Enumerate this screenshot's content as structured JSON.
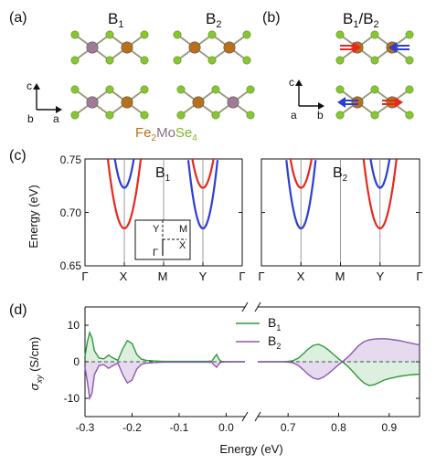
{
  "panels": {
    "a": "(a)",
    "b": "(b)",
    "c": "(c)",
    "d": "(d)"
  },
  "structures": {
    "b1_base": "B",
    "b1_sub": "1",
    "b2_base": "B",
    "b2_sub": "2",
    "b12_text": "B",
    "b12_sub1": "1",
    "b12_slash": "/B",
    "b12_sub2": "2",
    "compound": {
      "fe": "Fe",
      "fe_sub": "2",
      "mo": "Mo",
      "se": "Se",
      "se_sub": "4"
    },
    "axes_a": {
      "up": "c",
      "right": "a",
      "depth": "b"
    },
    "axes_b": {
      "up": "c",
      "right": "b",
      "depth": "a"
    }
  },
  "colors": {
    "se": "#86c633",
    "fe": "#b8711a",
    "mo": "#a07a98",
    "red": "#e8281e",
    "blue": "#2d3ed3",
    "green": "#2e9a3a",
    "purple": "#8e58b0"
  },
  "band": {
    "ylabel": "Energy (eV)",
    "yticks": [
      "0.75",
      "0.70",
      "0.65"
    ],
    "kpath": [
      "Γ",
      "X",
      "M",
      "Y",
      "Γ"
    ],
    "left_label_base": "B",
    "left_label_sub": "1",
    "right_label_base": "B",
    "right_label_sub": "2",
    "inset": {
      "Y": "Y",
      "M": "M",
      "X": "X",
      "G": "Γ"
    }
  },
  "chart_data": {
    "type": "line",
    "ylabel": "σxy (S/cm)",
    "xlabel": "Energy (eV)",
    "ylim": [
      -15,
      15
    ],
    "yticks": [
      10,
      0,
      -10
    ],
    "xticks_left": [
      -0.3,
      -0.2,
      -0.1,
      0.0
    ],
    "xticks_right": [
      0.7,
      0.8,
      0.9
    ],
    "xlim_left": [
      -0.3,
      0.04
    ],
    "xlim_right": [
      0.64,
      0.96
    ],
    "legend_placement": "top-right",
    "series": [
      {
        "name": "B1",
        "name_base": "B",
        "name_sub": "1",
        "x_left": [
          -0.3,
          -0.295,
          -0.29,
          -0.285,
          -0.28,
          -0.27,
          -0.26,
          -0.25,
          -0.24,
          -0.23,
          -0.22,
          -0.21,
          -0.2,
          -0.19,
          -0.18,
          -0.17,
          -0.16,
          -0.15,
          -0.14,
          -0.13,
          -0.12,
          -0.11,
          -0.1,
          -0.09,
          -0.08,
          -0.07,
          -0.06,
          -0.05,
          -0.04,
          -0.03,
          -0.025,
          -0.02,
          -0.015,
          -0.01,
          0.0,
          0.04
        ],
        "y_left": [
          1.5,
          5.5,
          8.0,
          6.5,
          3.0,
          1.0,
          0.8,
          1.8,
          1.0,
          0.4,
          3.5,
          5.8,
          5.0,
          2.0,
          0.7,
          0.4,
          0.3,
          0.2,
          0.15,
          0.1,
          0.1,
          0.1,
          0.1,
          0.1,
          0.1,
          0.1,
          0.1,
          0.1,
          0.1,
          0.2,
          1.2,
          2.0,
          0.6,
          0.1,
          0.0,
          0.0
        ],
        "x_right": [
          0.64,
          0.65,
          0.66,
          0.67,
          0.68,
          0.69,
          0.7,
          0.71,
          0.72,
          0.73,
          0.74,
          0.75,
          0.76,
          0.77,
          0.78,
          0.79,
          0.8,
          0.81,
          0.82,
          0.83,
          0.84,
          0.85,
          0.86,
          0.87,
          0.88,
          0.89,
          0.9,
          0.91,
          0.92,
          0.93,
          0.94,
          0.95,
          0.96
        ],
        "y_right": [
          0.0,
          0.0,
          0.0,
          0.0,
          0.0,
          0.0,
          0.1,
          0.3,
          1.0,
          2.2,
          3.5,
          4.5,
          4.8,
          4.2,
          3.2,
          2.0,
          0.8,
          -0.3,
          -1.5,
          -3.0,
          -4.5,
          -5.8,
          -6.5,
          -6.3,
          -5.7,
          -5.0,
          -4.6,
          -4.3,
          -4.0,
          -3.8,
          -3.6,
          -3.5,
          -3.4
        ]
      },
      {
        "name": "B2",
        "name_base": "B",
        "name_sub": "2",
        "x_left": [
          -0.3,
          -0.295,
          -0.29,
          -0.285,
          -0.28,
          -0.27,
          -0.26,
          -0.25,
          -0.24,
          -0.23,
          -0.22,
          -0.21,
          -0.2,
          -0.19,
          -0.18,
          -0.17,
          -0.16,
          -0.15,
          -0.14,
          -0.13,
          -0.12,
          -0.11,
          -0.1,
          -0.09,
          -0.08,
          -0.07,
          -0.06,
          -0.05,
          -0.04,
          -0.03,
          -0.025,
          -0.02,
          -0.015,
          -0.01,
          0.0,
          0.04
        ],
        "y_left": [
          -1.5,
          -5.5,
          -10.0,
          -8.5,
          -3.5,
          -1.0,
          -0.8,
          -1.8,
          -1.0,
          -0.4,
          -3.5,
          -5.8,
          -5.0,
          -2.0,
          -0.7,
          -0.4,
          -0.3,
          -0.2,
          -0.15,
          -0.1,
          -0.1,
          -0.1,
          -0.1,
          -0.1,
          -0.1,
          -0.1,
          -0.1,
          -0.1,
          -0.1,
          -0.2,
          -1.0,
          -1.5,
          -0.5,
          -0.1,
          0.0,
          0.0
        ],
        "x_right": [
          0.64,
          0.65,
          0.66,
          0.67,
          0.68,
          0.69,
          0.7,
          0.71,
          0.72,
          0.73,
          0.74,
          0.75,
          0.76,
          0.77,
          0.78,
          0.79,
          0.8,
          0.81,
          0.82,
          0.83,
          0.84,
          0.85,
          0.86,
          0.87,
          0.88,
          0.89,
          0.9,
          0.91,
          0.92,
          0.93,
          0.94,
          0.95,
          0.96
        ],
        "y_right": [
          0.0,
          0.0,
          0.0,
          0.0,
          0.0,
          0.0,
          -0.1,
          -0.3,
          -1.0,
          -2.2,
          -3.5,
          -4.5,
          -4.8,
          -4.2,
          -3.2,
          -2.0,
          -0.8,
          0.3,
          1.5,
          3.0,
          4.5,
          5.5,
          6.0,
          6.2,
          6.3,
          6.3,
          6.2,
          6.0,
          5.8,
          5.5,
          5.2,
          4.9,
          4.6
        ]
      }
    ]
  }
}
